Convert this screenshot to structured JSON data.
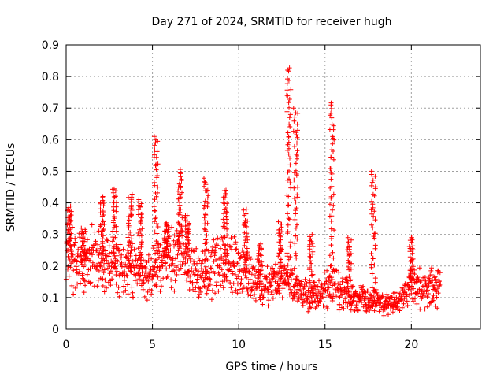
{
  "chart_data": {
    "type": "scatter",
    "title": "Day 271 of 2024, SRMTID for receiver hugh",
    "xlabel": "GPS time / hours",
    "ylabel": "SRMTID / TECUs",
    "xlim": [
      0,
      24
    ],
    "ylim": [
      0,
      0.9
    ],
    "x_ticks": [
      "0",
      "5",
      "10",
      "15",
      "20"
    ],
    "x_tick_values": [
      0,
      5,
      10,
      15,
      20
    ],
    "y_ticks": [
      "0",
      "0.1",
      "0.2",
      "0.3",
      "0.4",
      "0.5",
      "0.6",
      "0.7",
      "0.8",
      "0.9"
    ],
    "y_tick_values": [
      0,
      0.1,
      0.2,
      0.3,
      0.4,
      0.5,
      0.6,
      0.7,
      0.8,
      0.9
    ],
    "grid": true,
    "marker": "+",
    "color": "#ff0000",
    "data_range_x": [
      0,
      21.7
    ],
    "trend": [
      [
        0.0,
        0.24
      ],
      [
        0.5,
        0.22
      ],
      [
        1.0,
        0.2
      ],
      [
        1.5,
        0.22
      ],
      [
        2.0,
        0.22
      ],
      [
        2.5,
        0.21
      ],
      [
        3.0,
        0.2
      ],
      [
        3.5,
        0.19
      ],
      [
        4.0,
        0.19
      ],
      [
        4.5,
        0.18
      ],
      [
        5.0,
        0.18
      ],
      [
        5.5,
        0.22
      ],
      [
        6.0,
        0.23
      ],
      [
        6.5,
        0.24
      ],
      [
        7.0,
        0.22
      ],
      [
        7.5,
        0.17
      ],
      [
        8.0,
        0.16
      ],
      [
        8.5,
        0.2
      ],
      [
        9.0,
        0.22
      ],
      [
        9.5,
        0.21
      ],
      [
        10.0,
        0.2
      ],
      [
        10.5,
        0.16
      ],
      [
        11.0,
        0.14
      ],
      [
        11.5,
        0.15
      ],
      [
        12.0,
        0.15
      ],
      [
        12.5,
        0.16
      ],
      [
        13.0,
        0.16
      ],
      [
        13.5,
        0.12
      ],
      [
        14.0,
        0.11
      ],
      [
        14.5,
        0.11
      ],
      [
        15.0,
        0.12
      ],
      [
        15.5,
        0.14
      ],
      [
        16.0,
        0.11
      ],
      [
        16.5,
        0.1
      ],
      [
        17.0,
        0.1
      ],
      [
        17.5,
        0.09
      ],
      [
        18.0,
        0.09
      ],
      [
        18.5,
        0.08
      ],
      [
        19.0,
        0.08
      ],
      [
        19.5,
        0.1
      ],
      [
        20.0,
        0.14
      ],
      [
        20.5,
        0.13
      ],
      [
        21.0,
        0.13
      ],
      [
        21.7,
        0.14
      ]
    ],
    "bursts": [
      {
        "x": 0.2,
        "peak": 0.39
      },
      {
        "x": 1.0,
        "peak": 0.32
      },
      {
        "x": 2.1,
        "peak": 0.42
      },
      {
        "x": 2.8,
        "peak": 0.45
      },
      {
        "x": 3.7,
        "peak": 0.43
      },
      {
        "x": 4.3,
        "peak": 0.41
      },
      {
        "x": 5.2,
        "peak": 0.61
      },
      {
        "x": 5.8,
        "peak": 0.34
      },
      {
        "x": 6.6,
        "peak": 0.51
      },
      {
        "x": 7.0,
        "peak": 0.36
      },
      {
        "x": 8.1,
        "peak": 0.48
      },
      {
        "x": 9.2,
        "peak": 0.44
      },
      {
        "x": 10.4,
        "peak": 0.38
      },
      {
        "x": 11.2,
        "peak": 0.27
      },
      {
        "x": 12.4,
        "peak": 0.34
      },
      {
        "x": 12.9,
        "peak": 0.83
      },
      {
        "x": 13.3,
        "peak": 0.7
      },
      {
        "x": 14.2,
        "peak": 0.3
      },
      {
        "x": 15.4,
        "peak": 0.72
      },
      {
        "x": 16.4,
        "peak": 0.29
      },
      {
        "x": 17.8,
        "peak": 0.5
      },
      {
        "x": 20.0,
        "peak": 0.29
      }
    ]
  }
}
